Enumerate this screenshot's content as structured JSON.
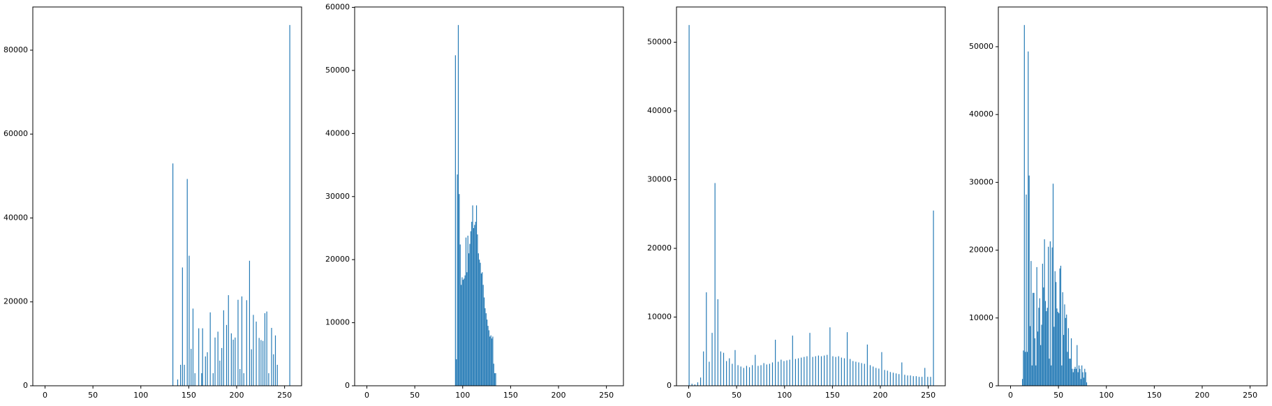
{
  "chart_data": [
    {
      "type": "bar",
      "color": "#1f77b4",
      "xlim": [
        -12.75,
        267.75
      ],
      "ylim": [
        0,
        90300
      ],
      "xticks": [
        0,
        50,
        100,
        150,
        200,
        250
      ],
      "yticks": [
        0,
        20000,
        40000,
        60000,
        80000
      ],
      "x": [
        133,
        138,
        141,
        143,
        145,
        148,
        150,
        152,
        154,
        156,
        160,
        163,
        164,
        167,
        169,
        172,
        175,
        177,
        180,
        182,
        184,
        186,
        189,
        191,
        194,
        196,
        198,
        201,
        203,
        205,
        207,
        210,
        213,
        215,
        217,
        220,
        223,
        225,
        227,
        229,
        231,
        233,
        236,
        238,
        240,
        242,
        255
      ],
      "values": [
        53000,
        1500,
        5000,
        28200,
        5000,
        49300,
        31000,
        8800,
        18400,
        3000,
        13700,
        3000,
        13700,
        7000,
        8000,
        17500,
        3000,
        11500,
        12900,
        6000,
        9000,
        18000,
        14500,
        21600,
        12500,
        11000,
        11500,
        20500,
        4000,
        21300,
        3000,
        20400,
        29800,
        8700,
        16900,
        15300,
        11400,
        10900,
        10700,
        17300,
        17700,
        3000,
        13800,
        7500,
        12000,
        5000,
        86000
      ]
    },
    {
      "type": "bar",
      "color": "#1f77b4",
      "xlim": [
        -12.75,
        267.75
      ],
      "ylim": [
        0,
        60060
      ],
      "xticks": [
        0,
        50,
        100,
        150,
        200,
        250
      ],
      "yticks": [
        0,
        10000,
        20000,
        30000,
        40000,
        50000,
        60000
      ],
      "x": [
        92,
        93,
        94,
        95,
        96,
        97,
        98,
        99,
        100,
        101,
        102,
        103,
        104,
        105,
        106,
        107,
        108,
        109,
        110,
        111,
        112,
        113,
        114,
        115,
        116,
        117,
        118,
        119,
        120,
        121,
        122,
        123,
        124,
        125,
        126,
        127,
        128,
        129,
        130,
        131,
        132,
        133,
        134
      ],
      "values": [
        52400,
        4200,
        33500,
        57200,
        30400,
        22400,
        16000,
        17200,
        16800,
        17000,
        17500,
        23500,
        18000,
        23800,
        21000,
        22500,
        24500,
        26000,
        28600,
        25000,
        25500,
        26000,
        28600,
        24000,
        21000,
        20000,
        19500,
        17800,
        18000,
        16000,
        14000,
        12300,
        11500,
        10500,
        9500,
        8800,
        7800,
        8000,
        7500,
        7800,
        3500,
        2000,
        2000
      ]
    },
    {
      "type": "bar",
      "color": "#1f77b4",
      "xlim": [
        -12.75,
        267.75
      ],
      "ylim": [
        0,
        55125
      ],
      "xticks": [
        0,
        50,
        100,
        150,
        200,
        250
      ],
      "yticks": [
        0,
        10000,
        20000,
        30000,
        40000,
        50000
      ],
      "x": [
        0,
        3,
        6,
        9,
        12,
        15,
        18,
        21,
        24,
        27,
        30,
        33,
        36,
        39,
        42,
        45,
        48,
        51,
        54,
        57,
        60,
        63,
        66,
        69,
        72,
        75,
        78,
        81,
        84,
        87,
        90,
        93,
        96,
        99,
        102,
        105,
        108,
        111,
        114,
        117,
        120,
        123,
        126,
        129,
        132,
        135,
        138,
        141,
        144,
        147,
        150,
        153,
        156,
        159,
        162,
        165,
        168,
        171,
        174,
        177,
        180,
        183,
        186,
        189,
        192,
        195,
        198,
        201,
        204,
        207,
        210,
        213,
        216,
        219,
        222,
        225,
        228,
        231,
        234,
        237,
        240,
        243,
        246,
        249,
        252,
        255
      ],
      "values": [
        52500,
        300,
        200,
        500,
        1200,
        5000,
        13600,
        3500,
        7700,
        29500,
        12600,
        5000,
        4800,
        3600,
        4000,
        3200,
        5200,
        3000,
        2800,
        2600,
        2900,
        2700,
        3000,
        4500,
        2900,
        3000,
        3300,
        3100,
        3200,
        3400,
        6700,
        3500,
        3800,
        3600,
        3700,
        3800,
        7300,
        3900,
        4000,
        4100,
        4200,
        4300,
        7700,
        4200,
        4300,
        4400,
        4300,
        4400,
        4500,
        8500,
        4300,
        4200,
        4300,
        4100,
        4000,
        7800,
        3900,
        3600,
        3500,
        3400,
        3300,
        3200,
        6000,
        3000,
        2800,
        2600,
        2500,
        4900,
        2300,
        2200,
        2000,
        1900,
        1800,
        1700,
        3400,
        1600,
        1500,
        1500,
        1400,
        1400,
        1300,
        1300,
        2600,
        1300,
        1300,
        25500
      ]
    },
    {
      "type": "bar",
      "color": "#1f77b4",
      "xlim": [
        -12.75,
        267.75
      ],
      "ylim": [
        0,
        55860
      ],
      "xticks": [
        0,
        50,
        100,
        150,
        200,
        250
      ],
      "yticks": [
        0,
        10000,
        20000,
        30000,
        40000,
        50000
      ],
      "x": [
        12,
        13,
        14,
        15,
        16,
        17,
        18,
        19,
        20,
        21,
        22,
        23,
        24,
        25,
        26,
        27,
        28,
        29,
        30,
        31,
        32,
        33,
        34,
        35,
        36,
        37,
        38,
        39,
        40,
        41,
        42,
        43,
        44,
        45,
        46,
        47,
        48,
        49,
        50,
        51,
        52,
        53,
        54,
        55,
        56,
        57,
        58,
        59,
        60,
        61,
        62,
        63,
        64,
        65,
        66,
        67,
        68,
        69,
        70,
        71,
        72,
        73,
        74,
        75,
        76,
        77,
        78,
        79
      ],
      "values": [
        1000,
        5200,
        53200,
        5000,
        28200,
        5000,
        49300,
        31000,
        8800,
        18400,
        3000,
        13700,
        13700,
        7000,
        3000,
        17500,
        8000,
        11500,
        12900,
        6000,
        9000,
        18000,
        14500,
        21600,
        12500,
        11000,
        11500,
        20500,
        4000,
        21300,
        3000,
        20400,
        29800,
        8700,
        16900,
        15300,
        11400,
        10900,
        10700,
        17300,
        17700,
        3000,
        13800,
        7500,
        12000,
        10000,
        10500,
        5000,
        8500,
        4000,
        4000,
        7000,
        2500,
        2000,
        2500,
        2800,
        2500,
        6000,
        2000,
        3000,
        2500,
        1000,
        3000,
        2000,
        1200,
        2500,
        2000,
        500
      ]
    }
  ]
}
